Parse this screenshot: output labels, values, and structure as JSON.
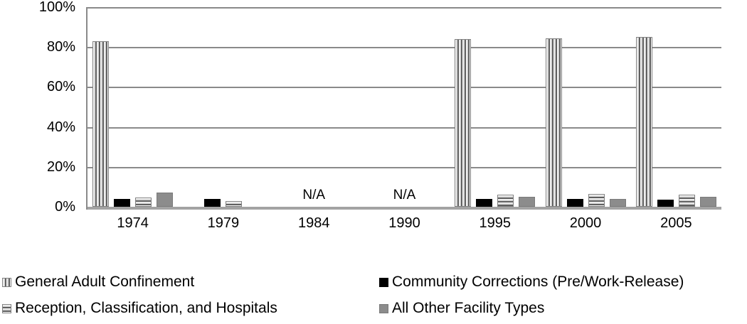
{
  "chart_data": {
    "type": "bar",
    "title": "",
    "xlabel": "",
    "ylabel": "",
    "ylim": [
      0,
      100
    ],
    "grid": "horizontal",
    "legend_position": "bottom-two-columns",
    "y_ticks": [
      "100%",
      "80%",
      "60%",
      "40%",
      "20%",
      "0%"
    ],
    "categories": [
      "1974",
      "1979",
      "1984",
      "1990",
      "1995",
      "2000",
      "2005"
    ],
    "series": [
      {
        "name": "General Adult Confinement",
        "pattern": "vertical-stripes",
        "values": [
          83,
          null,
          null,
          null,
          84,
          84.5,
          85
        ]
      },
      {
        "name": "Community Corrections (Pre/Work-Release)",
        "pattern": "solid-black",
        "values": [
          4,
          4,
          null,
          null,
          4,
          4,
          3.5
        ]
      },
      {
        "name": "Reception, Classification, and Hospitals",
        "pattern": "horizontal-stripes",
        "values": [
          4.5,
          3,
          null,
          null,
          6,
          6.5,
          6
        ]
      },
      {
        "name": "All Other Facility Types",
        "pattern": "solid-gray",
        "values": [
          7,
          null,
          null,
          null,
          5,
          4,
          5
        ]
      }
    ],
    "annotations": [
      {
        "category": "1984",
        "text": "N/A"
      },
      {
        "category": "1990",
        "text": "N/A"
      }
    ]
  },
  "colors": {
    "bar_black": "#000000",
    "bar_gray": "#8c8c8c",
    "stripe_dark": "#5f5f5f",
    "stripe_light": "#d8d8d8",
    "gridline": "#8a8a8a",
    "baseline_axis": "#a3a3a3",
    "text": "#000000",
    "background": "#ffffff"
  }
}
